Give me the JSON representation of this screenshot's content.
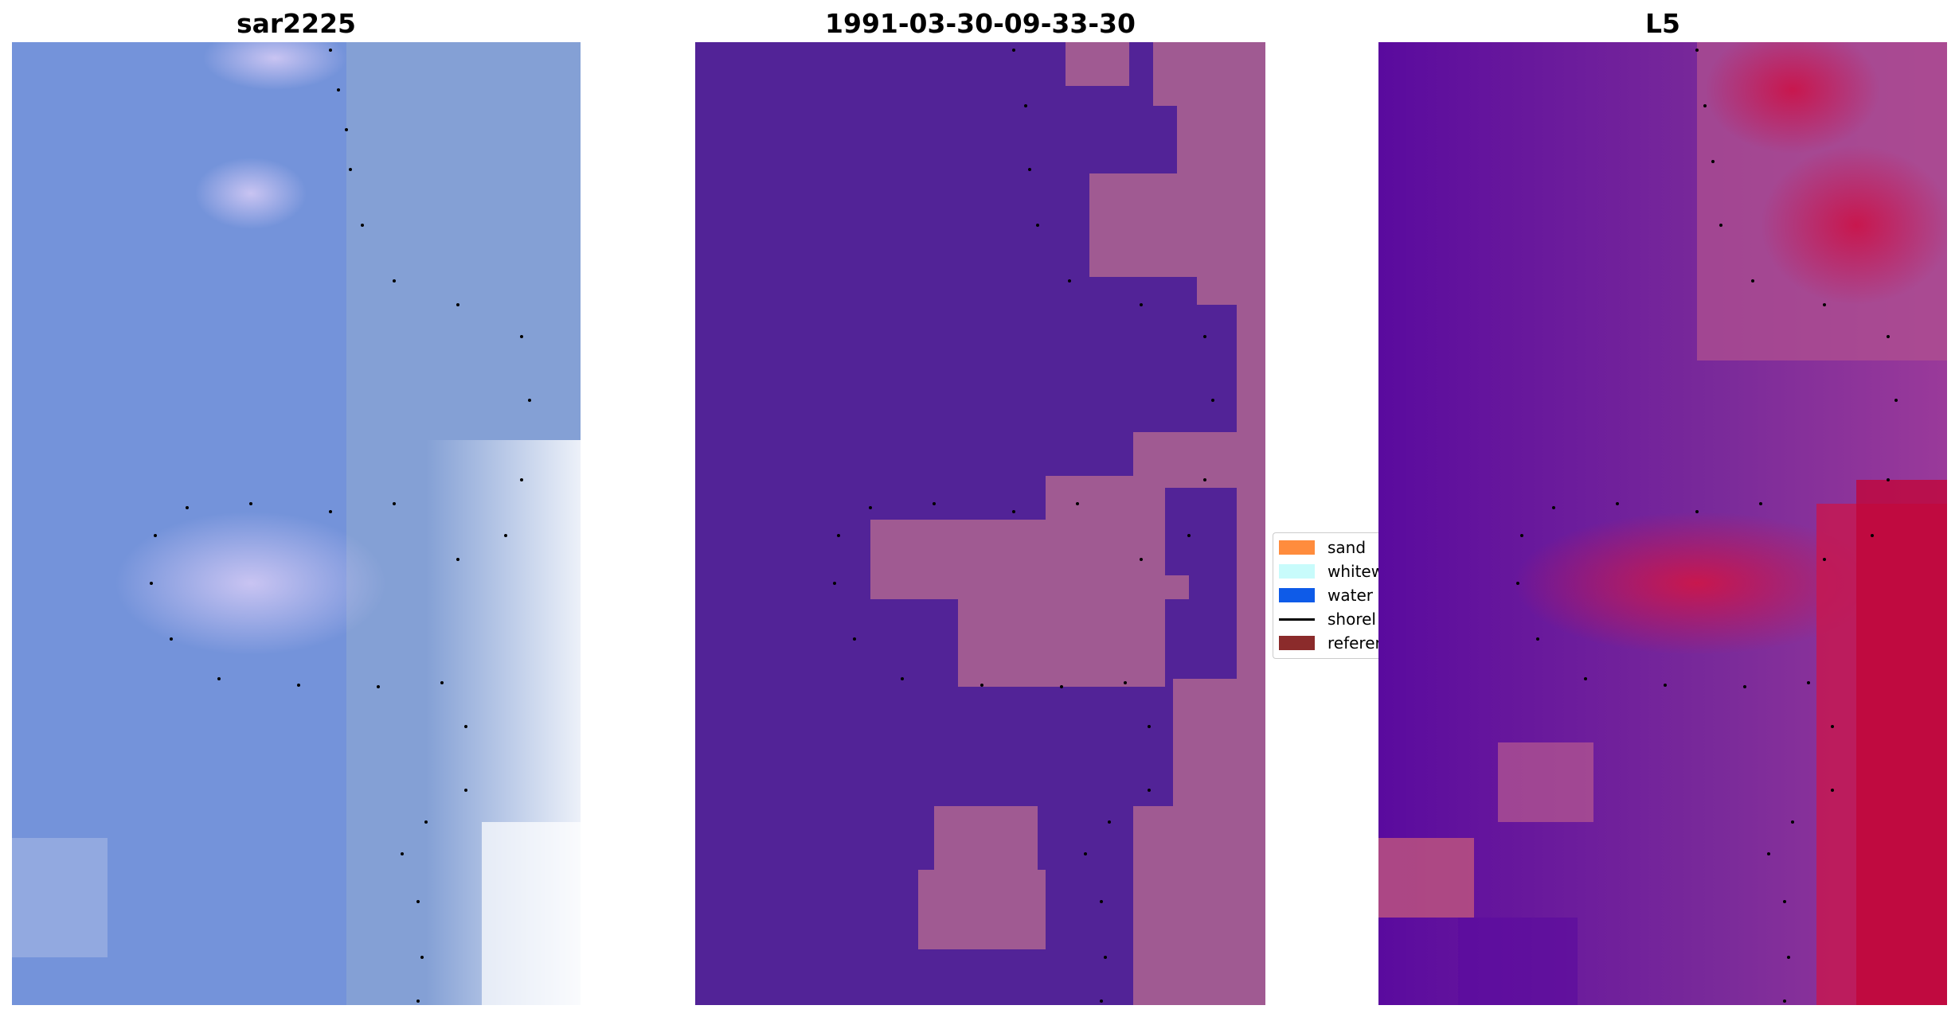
{
  "panels": [
    {
      "title": "sar2225"
    },
    {
      "title": "1991-03-30-09-33-30"
    },
    {
      "title": "L5"
    }
  ],
  "legend": {
    "items": [
      {
        "label": "sand",
        "color": "#ff8c3d",
        "kind": "patch"
      },
      {
        "label": "whitew",
        "color": "#c8fbfb",
        "kind": "patch"
      },
      {
        "label": "water",
        "color": "#0e5be8",
        "kind": "patch"
      },
      {
        "label": "shorel",
        "color": "#000000",
        "kind": "line"
      },
      {
        "label": "referer",
        "color": "#8b2b2b",
        "kind": "patch"
      }
    ]
  },
  "colors": {
    "sar_base": "#6d8fd6",
    "class_water": "#522397",
    "class_land": "#a05a92",
    "l5_base": "#7a2a9a",
    "l5_bright": "#c8174e",
    "shoreline_dots": "#000000"
  }
}
